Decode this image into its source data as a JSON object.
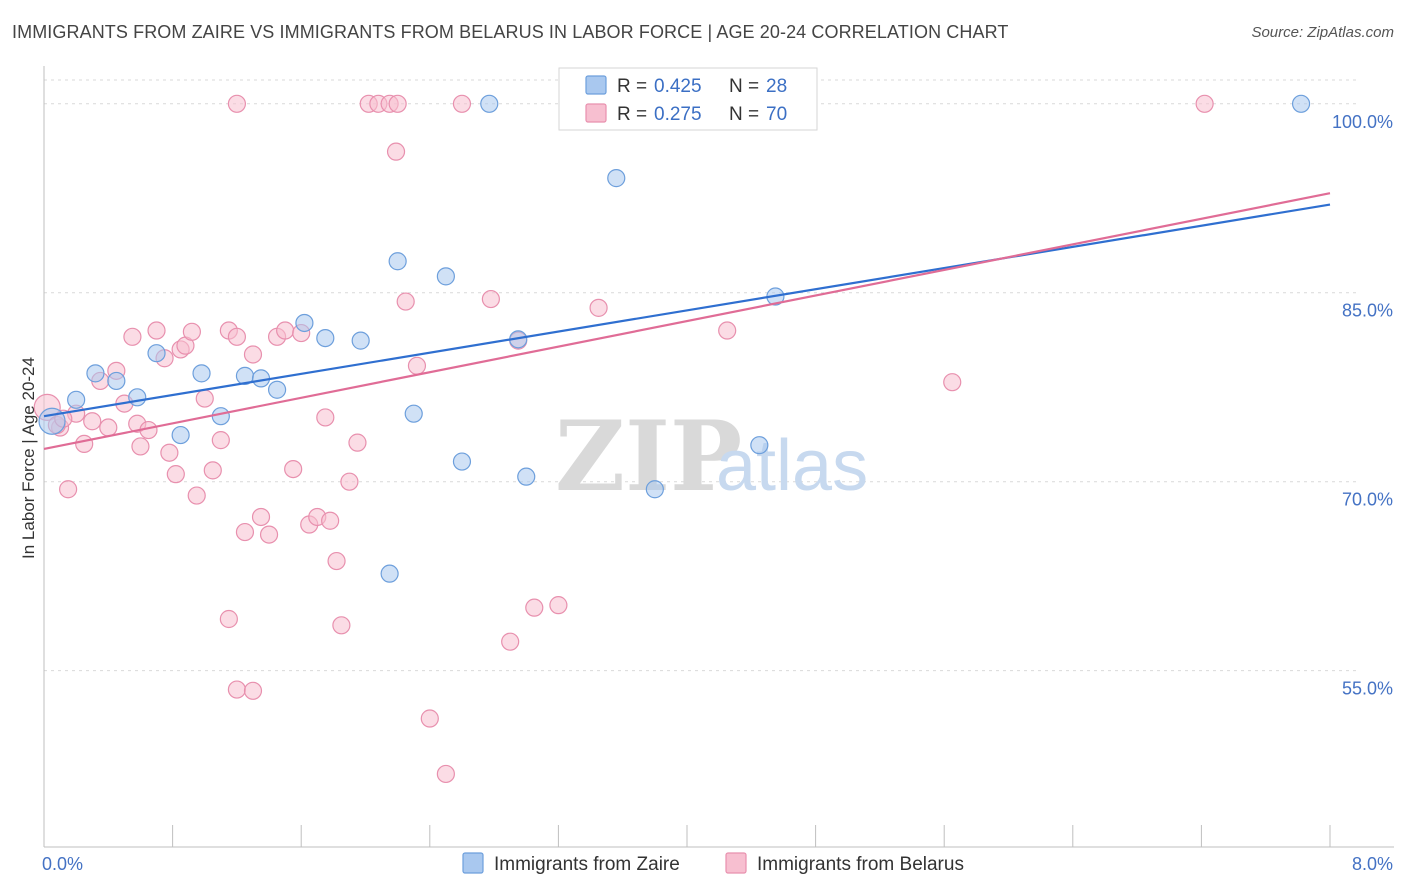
{
  "title": "IMMIGRANTS FROM ZAIRE VS IMMIGRANTS FROM BELARUS IN LABOR FORCE | AGE 20-24 CORRELATION CHART",
  "source": "Source: ZipAtlas.com",
  "watermark": {
    "zip": "ZIP",
    "atlas": "atlas"
  },
  "colors": {
    "zaire_fill": "#a9c8ef",
    "zaire_stroke": "#6d9fdc",
    "zaire_line": "#2f6fd0",
    "belarus_fill": "#f7bfd0",
    "belarus_stroke": "#e890ae",
    "belarus_line": "#e06c96",
    "grid": "#d9d9d9",
    "axis_text": "#4472c4"
  },
  "chart_data": {
    "type": "scatter",
    "xlabel": "",
    "ylabel": "In Labor Force | Age 20-24",
    "xlim": [
      0,
      8
    ],
    "ylim": [
      41,
      103
    ],
    "x_tick_labels": [
      {
        "value": 0,
        "label": "0.0%"
      },
      {
        "value": 8,
        "label": "8.0%"
      }
    ],
    "x_minor_ticks": [
      0.8,
      1.6,
      2.4,
      3.2,
      4.0,
      4.8,
      5.6,
      6.4,
      7.2
    ],
    "y_ticks": [
      {
        "value": 100,
        "label": "100.0%"
      },
      {
        "value": 85,
        "label": "85.0%"
      },
      {
        "value": 70,
        "label": "70.0%"
      },
      {
        "value": 55,
        "label": "55.0%"
      }
    ],
    "grid_lines": [
      55,
      70,
      85,
      100
    ],
    "legend": {
      "placement": "top-center",
      "rows": [
        {
          "r_label": "R =",
          "r_value": "0.425",
          "n_label": "N =",
          "n_value": "28"
        },
        {
          "r_label": "R =",
          "r_value": "0.275",
          "n_label": "N =",
          "n_value": "70"
        }
      ]
    },
    "series": [
      {
        "name": "Immigrants from Zaire",
        "trend": [
          [
            0,
            75.2
          ],
          [
            8,
            92.0
          ]
        ],
        "points": [
          [
            0.05,
            74.8
          ],
          [
            0.2,
            76.5
          ],
          [
            0.32,
            78.6
          ],
          [
            0.45,
            78.0
          ],
          [
            0.58,
            76.7
          ],
          [
            0.7,
            80.2
          ],
          [
            0.85,
            73.7
          ],
          [
            0.98,
            78.6
          ],
          [
            1.1,
            75.2
          ],
          [
            1.25,
            78.4
          ],
          [
            1.35,
            78.2
          ],
          [
            1.45,
            77.3
          ],
          [
            1.62,
            82.6
          ],
          [
            1.75,
            81.4
          ],
          [
            1.97,
            81.2
          ],
          [
            2.2,
            87.5
          ],
          [
            2.3,
            75.4
          ],
          [
            2.5,
            86.3
          ],
          [
            2.6,
            71.6
          ],
          [
            2.77,
            100.0
          ],
          [
            2.95,
            81.3
          ],
          [
            3.0,
            70.4
          ],
          [
            3.56,
            94.1
          ],
          [
            3.8,
            69.4
          ],
          [
            4.55,
            84.7
          ],
          [
            4.45,
            72.9
          ],
          [
            2.15,
            62.7
          ],
          [
            7.82,
            100.0
          ]
        ]
      },
      {
        "name": "Immigrants from Belarus",
        "trend": [
          [
            0,
            72.6
          ],
          [
            8,
            92.9
          ]
        ],
        "points": [
          [
            0.02,
            75.9
          ],
          [
            0.1,
            74.3
          ],
          [
            0.15,
            69.4
          ],
          [
            0.2,
            75.4
          ],
          [
            0.25,
            73.0
          ],
          [
            0.3,
            74.8
          ],
          [
            0.35,
            78.0
          ],
          [
            0.4,
            74.3
          ],
          [
            0.45,
            78.8
          ],
          [
            0.5,
            76.2
          ],
          [
            0.55,
            81.5
          ],
          [
            0.58,
            74.6
          ],
          [
            0.6,
            72.8
          ],
          [
            0.65,
            74.1
          ],
          [
            0.7,
            82.0
          ],
          [
            0.75,
            79.8
          ],
          [
            0.78,
            72.3
          ],
          [
            0.82,
            70.6
          ],
          [
            0.85,
            80.5
          ],
          [
            0.88,
            80.8
          ],
          [
            0.92,
            81.9
          ],
          [
            0.95,
            68.9
          ],
          [
            1.0,
            76.6
          ],
          [
            1.05,
            70.9
          ],
          [
            1.1,
            73.3
          ],
          [
            1.15,
            82.0
          ],
          [
            1.2,
            81.5
          ],
          [
            1.25,
            66.0
          ],
          [
            1.3,
            80.1
          ],
          [
            1.35,
            67.2
          ],
          [
            1.4,
            65.8
          ],
          [
            1.45,
            81.5
          ],
          [
            1.5,
            82.0
          ],
          [
            1.55,
            71.0
          ],
          [
            1.6,
            81.8
          ],
          [
            1.65,
            66.6
          ],
          [
            1.7,
            67.2
          ],
          [
            1.75,
            75.1
          ],
          [
            1.78,
            66.9
          ],
          [
            1.82,
            63.7
          ],
          [
            1.85,
            58.6
          ],
          [
            1.9,
            70.0
          ],
          [
            1.95,
            73.1
          ],
          [
            2.02,
            100.0
          ],
          [
            2.08,
            100.0
          ],
          [
            2.15,
            100.0
          ],
          [
            2.19,
            96.2
          ],
          [
            2.25,
            84.3
          ],
          [
            2.32,
            79.2
          ],
          [
            2.4,
            51.2
          ],
          [
            2.5,
            46.8
          ],
          [
            2.6,
            100.0
          ],
          [
            2.78,
            84.5
          ],
          [
            2.9,
            57.3
          ],
          [
            2.95,
            81.2
          ],
          [
            3.05,
            60.0
          ],
          [
            3.2,
            60.2
          ],
          [
            3.45,
            83.8
          ],
          [
            3.72,
            100.0
          ],
          [
            3.8,
            100.0
          ],
          [
            4.25,
            82.0
          ],
          [
            5.65,
            77.9
          ],
          [
            7.22,
            100.0
          ],
          [
            1.2,
            100.0
          ],
          [
            2.2,
            100.0
          ],
          [
            1.15,
            59.1
          ],
          [
            1.2,
            53.5
          ],
          [
            1.3,
            53.4
          ],
          [
            0.08,
            74.5
          ],
          [
            0.12,
            75.0
          ]
        ]
      }
    ]
  }
}
